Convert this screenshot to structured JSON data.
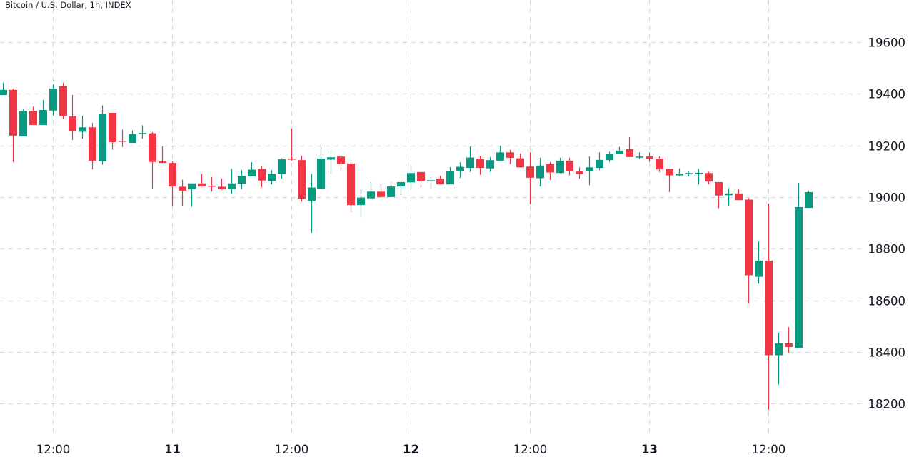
{
  "header": {
    "title": "Bitcoin / U.S. Dollar, 1h, INDEX"
  },
  "colors": {
    "up": "#089981",
    "down": "#f23645",
    "grid": "#d6d6d6",
    "text": "#131722"
  },
  "chart_data": {
    "type": "candlestick",
    "title": "Bitcoin / U.S. Dollar, 1h, INDEX",
    "interval": "1h",
    "ylim": [
      18076,
      19763
    ],
    "y_ticks": [
      18200,
      18400,
      18600,
      18800,
      19000,
      19200,
      19400,
      19600
    ],
    "x_ticks": [
      {
        "label": "12:00",
        "candle": 5,
        "bold": false
      },
      {
        "label": "11",
        "candle": 17,
        "bold": true
      },
      {
        "label": "12:00",
        "candle": 29,
        "bold": false
      },
      {
        "label": "12",
        "candle": 41,
        "bold": true
      },
      {
        "label": "12:00",
        "candle": 53,
        "bold": false
      },
      {
        "label": "13",
        "candle": 65,
        "bold": true
      },
      {
        "label": "12:00",
        "candle": 77,
        "bold": false
      }
    ],
    "grid": true,
    "ohlc": [
      [
        19395,
        19443,
        19395,
        19415
      ],
      [
        19415,
        19420,
        19136,
        19238
      ],
      [
        19235,
        19340,
        19235,
        19334
      ],
      [
        19334,
        19350,
        19279,
        19279
      ],
      [
        19279,
        19376,
        19279,
        19337
      ],
      [
        19335,
        19436,
        19316,
        19420
      ],
      [
        19429,
        19443,
        19302,
        19314
      ],
      [
        19313,
        19395,
        19221,
        19255
      ],
      [
        19253,
        19315,
        19226,
        19270
      ],
      [
        19270,
        19287,
        19107,
        19141
      ],
      [
        19139,
        19355,
        19125,
        19323
      ],
      [
        19326,
        19326,
        19184,
        19213
      ],
      [
        19218,
        19261,
        19194,
        19216
      ],
      [
        19210,
        19258,
        19210,
        19244
      ],
      [
        19245,
        19278,
        19226,
        19248
      ],
      [
        19247,
        19252,
        19033,
        19136
      ],
      [
        19138,
        19196,
        19132,
        19132
      ],
      [
        19132,
        19138,
        18966,
        19041
      ],
      [
        19040,
        19067,
        18966,
        19025
      ],
      [
        19030,
        19053,
        18963,
        19053
      ],
      [
        19053,
        19090,
        19040,
        19041
      ],
      [
        19044,
        19077,
        19021,
        19042
      ],
      [
        19040,
        19072,
        19028,
        19030
      ],
      [
        19030,
        19109,
        19012,
        19053
      ],
      [
        19052,
        19104,
        19030,
        19082
      ],
      [
        19080,
        19135,
        19080,
        19106
      ],
      [
        19109,
        19120,
        19037,
        19064
      ],
      [
        19062,
        19104,
        19049,
        19090
      ],
      [
        19089,
        19150,
        19072,
        19146
      ],
      [
        19149,
        19266,
        19141,
        19146
      ],
      [
        19143,
        19160,
        18982,
        18994
      ],
      [
        18986,
        19090,
        18860,
        19037
      ],
      [
        19032,
        19194,
        19032,
        19149
      ],
      [
        19145,
        19183,
        19089,
        19154
      ],
      [
        19157,
        19164,
        19106,
        19128
      ],
      [
        19130,
        19135,
        18943,
        18969
      ],
      [
        18969,
        19030,
        18922,
        18998
      ],
      [
        18995,
        19058,
        18991,
        19021
      ],
      [
        19021,
        19053,
        19000,
        19000
      ],
      [
        19000,
        19056,
        19000,
        19041
      ],
      [
        19041,
        19058,
        19009,
        19058
      ],
      [
        19057,
        19127,
        19028,
        19093
      ],
      [
        19097,
        19097,
        19038,
        19063
      ],
      [
        19062,
        19077,
        19033,
        19065
      ],
      [
        19071,
        19083,
        19049,
        19049
      ],
      [
        19049,
        19116,
        19049,
        19100
      ],
      [
        19100,
        19135,
        19074,
        19117
      ],
      [
        19113,
        19196,
        19097,
        19153
      ],
      [
        19149,
        19160,
        19086,
        19113
      ],
      [
        19111,
        19155,
        19097,
        19143
      ],
      [
        19141,
        19198,
        19141,
        19173
      ],
      [
        19173,
        19183,
        19127,
        19152
      ],
      [
        19150,
        19169,
        19115,
        19115
      ],
      [
        19118,
        19173,
        18972,
        19075
      ],
      [
        19073,
        19152,
        19041,
        19122
      ],
      [
        19127,
        19135,
        19066,
        19095
      ],
      [
        19093,
        19152,
        19093,
        19141
      ],
      [
        19141,
        19152,
        19084,
        19100
      ],
      [
        19099,
        19115,
        19071,
        19089
      ],
      [
        19100,
        19157,
        19046,
        19115
      ],
      [
        19113,
        19173,
        19104,
        19144
      ],
      [
        19143,
        19175,
        19136,
        19167
      ],
      [
        19166,
        19194,
        19166,
        19180
      ],
      [
        19185,
        19232,
        19155,
        19155
      ],
      [
        19155,
        19173,
        19147,
        19157
      ],
      [
        19157,
        19173,
        19136,
        19148
      ],
      [
        19149,
        19157,
        19097,
        19107
      ],
      [
        19109,
        19109,
        19019,
        19084
      ],
      [
        19084,
        19111,
        19081,
        19091
      ],
      [
        19088,
        19098,
        19080,
        19093
      ],
      [
        19092,
        19109,
        19049,
        19094
      ],
      [
        19093,
        19098,
        19049,
        19060
      ],
      [
        19058,
        19058,
        18957,
        19006
      ],
      [
        19007,
        19035,
        18966,
        19014
      ],
      [
        19014,
        19032,
        18988,
        18988
      ],
      [
        18990,
        18996,
        18588,
        18697
      ],
      [
        18691,
        18828,
        18664,
        18754
      ],
      [
        18754,
        18975,
        18176,
        18387
      ],
      [
        18387,
        18475,
        18274,
        18433
      ],
      [
        18433,
        18496,
        18397,
        18419
      ],
      [
        18416,
        19055,
        18416,
        18961
      ],
      [
        18958,
        19024,
        18958,
        19019
      ]
    ]
  }
}
